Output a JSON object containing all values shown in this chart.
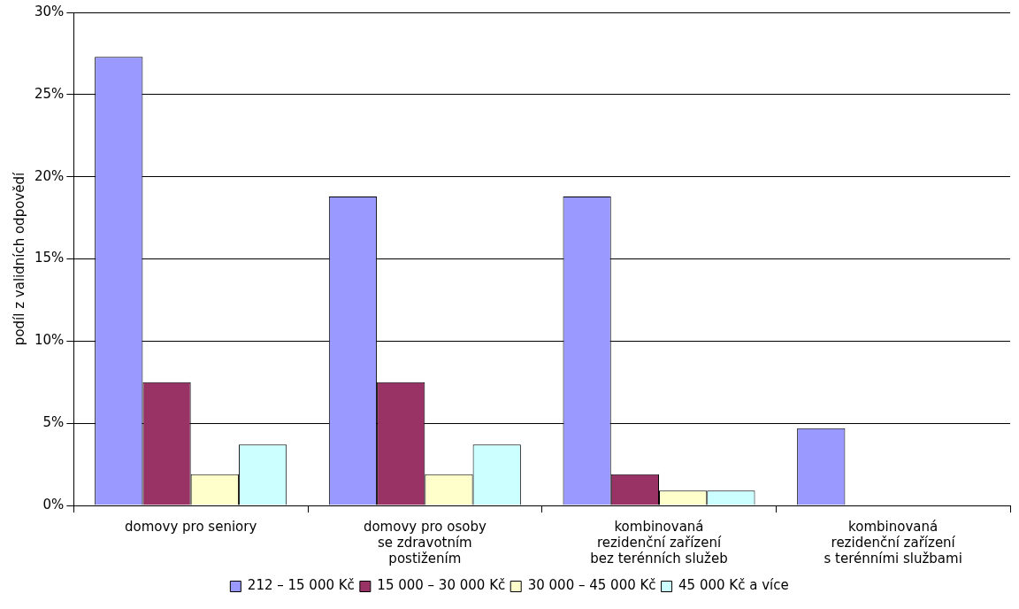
{
  "chart_data": {
    "type": "bar",
    "ylabel": "podíl z validních odpovědí",
    "categories": [
      "domovy pro seniory",
      "domovy pro osoby\nse zdravotním\npostižením",
      "kombinovaná\nrezidenční zařízení\nbez terénních služeb",
      "kombinovaná\nrezidenční zařízení\ns terénními službami"
    ],
    "series": [
      {
        "name": "212 – 15 000 Kč",
        "color": "#9999ff",
        "values": [
          27.3,
          18.8,
          18.8,
          4.7
        ]
      },
      {
        "name": "15 000 – 30 000 Kč",
        "color": "#993366",
        "values": [
          7.5,
          7.5,
          1.9,
          0
        ]
      },
      {
        "name": "30 000 – 45 000 Kč",
        "color": "#ffffcc",
        "values": [
          1.9,
          1.9,
          0.9,
          0
        ]
      },
      {
        "name": "45 000 Kč a více",
        "color": "#ccffff",
        "values": [
          3.7,
          3.7,
          0.9,
          0
        ]
      }
    ],
    "ylim": [
      0,
      30
    ],
    "yticks": [
      {
        "value": 0,
        "label": "0%"
      },
      {
        "value": 5,
        "label": "5%"
      },
      {
        "value": 10,
        "label": "10%"
      },
      {
        "value": 15,
        "label": "15%"
      },
      {
        "value": 20,
        "label": "20%"
      },
      {
        "value": 25,
        "label": "25%"
      },
      {
        "value": 30,
        "label": "30%"
      }
    ],
    "grid": "y",
    "legend": "bottom"
  }
}
